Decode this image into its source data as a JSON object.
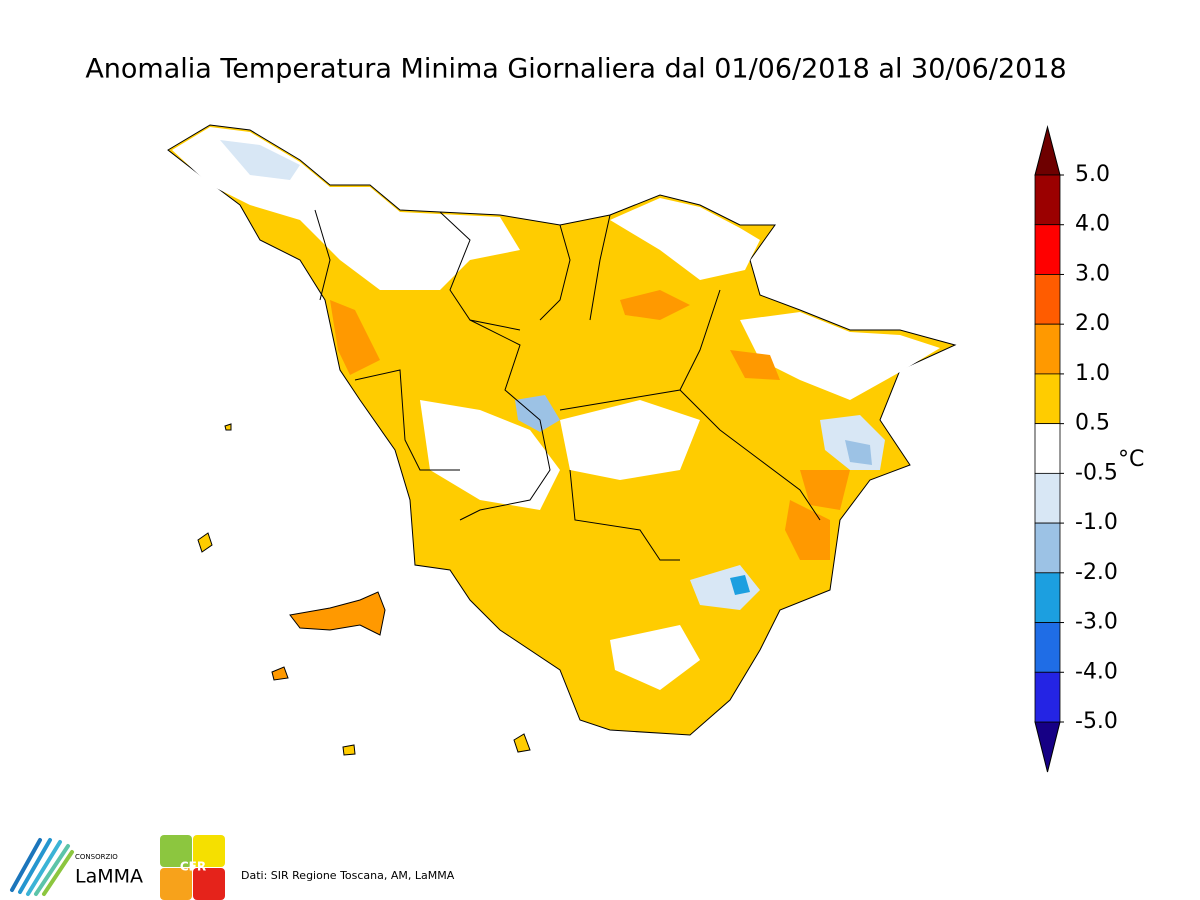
{
  "title": "Anomalia Temperatura Minima Giornaliera dal 01/06/2018 al 30/06/2018",
  "legend": {
    "unit": "°C",
    "levels": [
      {
        "value": 5,
        "label": "5.0"
      },
      {
        "value": 4,
        "label": "4.0"
      },
      {
        "value": 3,
        "label": "3.0"
      },
      {
        "value": 2,
        "label": "2.0"
      },
      {
        "value": 1,
        "label": "1.0"
      },
      {
        "value": 0.5,
        "label": "0.5"
      },
      {
        "value": -0.5,
        "label": "-0.5"
      },
      {
        "value": -1,
        "label": "-1.0"
      },
      {
        "value": -2,
        "label": "-2.0"
      },
      {
        "value": -3,
        "label": "-3.0"
      },
      {
        "value": -4,
        "label": "-4.0"
      },
      {
        "value": -5,
        "label": "-5.0"
      }
    ],
    "colors": [
      "#6e0000",
      "#9b0000",
      "#ff0000",
      "#ff5c00",
      "#ff9900",
      "#ffcc00",
      "#ffffff",
      "#d8e7f5",
      "#9cc2e5",
      "#1c9fe0",
      "#1f6de6",
      "#2424e4",
      "#160085"
    ]
  },
  "credits": "Dati: SIR Regione Toscana, AM, LaMMA",
  "logos": {
    "consorzio": "CONSORZIO",
    "lamma": "LaMMA",
    "cfr": "CFR"
  }
}
